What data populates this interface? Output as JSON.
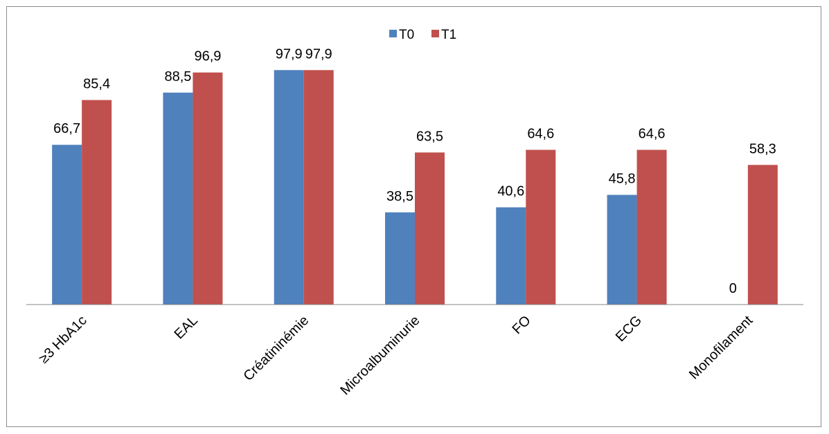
{
  "chart_data": {
    "type": "bar",
    "categories": [
      "≥3 HbA1c",
      "EAL",
      "Créatininémie",
      "Microalbuminurie",
      "FO",
      "ECG",
      "Monofilament"
    ],
    "series": [
      {
        "name": "T0",
        "values": [
          66.7,
          88.5,
          97.9,
          38.5,
          40.6,
          45.8,
          0
        ],
        "labels": [
          "66,7",
          "88,5",
          "97,9",
          "38,5",
          "40,6",
          "45,8",
          "0"
        ]
      },
      {
        "name": "T1",
        "values": [
          85.4,
          96.9,
          97.9,
          63.5,
          64.6,
          64.6,
          58.3
        ],
        "labels": [
          "85,4",
          "96,9",
          "97,9",
          "63,5",
          "64,6",
          "64,6",
          "58,3"
        ]
      }
    ],
    "ylim": [
      0,
      100
    ],
    "grid": false,
    "legend_position": "top-center",
    "data_labels": true
  },
  "colors": {
    "T0": "#4f81bd",
    "T1": "#c0504d",
    "axis": "#868686",
    "border": "#8c8c8c"
  }
}
